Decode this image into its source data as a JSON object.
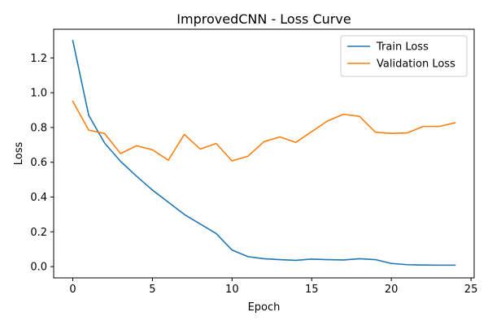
{
  "chart_data": {
    "type": "line",
    "title": "ImprovedCNN - Loss Curve",
    "xlabel": "Epoch",
    "ylabel": "Loss",
    "xlim": [
      -1.2,
      25.2
    ],
    "ylim": [
      -0.065,
      1.365
    ],
    "xticks": [
      0,
      5,
      10,
      15,
      20,
      25
    ],
    "yticks": [
      0.0,
      0.2,
      0.4,
      0.6,
      0.8,
      1.0,
      1.2
    ],
    "grid": false,
    "legend_position": "upper right",
    "x": [
      0,
      1,
      2,
      3,
      4,
      5,
      6,
      7,
      8,
      9,
      10,
      11,
      12,
      13,
      14,
      15,
      16,
      17,
      18,
      19,
      20,
      21,
      22,
      23,
      24
    ],
    "series": [
      {
        "name": "Train Loss",
        "color": "#1f77b4",
        "values": [
          1.3,
          0.87,
          0.71,
          0.605,
          0.52,
          0.44,
          0.37,
          0.3,
          0.245,
          0.19,
          0.095,
          0.057,
          0.045,
          0.04,
          0.036,
          0.043,
          0.04,
          0.038,
          0.045,
          0.04,
          0.018,
          0.011,
          0.009,
          0.008,
          0.008
        ]
      },
      {
        "name": "Validation Loss",
        "color": "#ff7f0e",
        "values": [
          0.95,
          0.785,
          0.765,
          0.65,
          0.695,
          0.672,
          0.612,
          0.76,
          0.676,
          0.708,
          0.608,
          0.635,
          0.718,
          0.746,
          0.714,
          0.776,
          0.838,
          0.876,
          0.864,
          0.773,
          0.766,
          0.769,
          0.806,
          0.806,
          0.827
        ]
      }
    ]
  }
}
